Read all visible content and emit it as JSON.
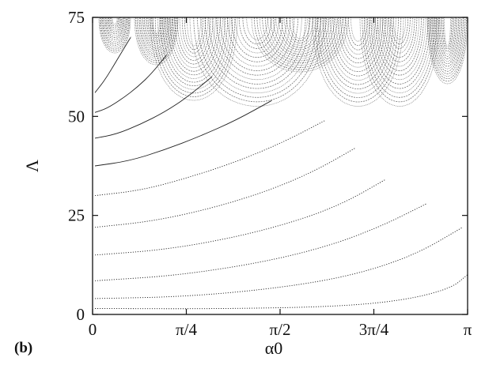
{
  "chart_data": {
    "type": "line",
    "title": "",
    "panel_label": "(b)",
    "xlabel": "α0",
    "ylabel": "Λ",
    "xlim": [
      0,
      3.14159
    ],
    "ylim": [
      0,
      75
    ],
    "grid": false,
    "legend": "none",
    "x_ticks": [
      {
        "value": 0,
        "label": "0"
      },
      {
        "value": 0.7854,
        "label": "π/4"
      },
      {
        "value": 1.5708,
        "label": "π/2"
      },
      {
        "value": 2.3562,
        "label": "3π/4"
      },
      {
        "value": 3.14159,
        "label": "π"
      }
    ],
    "y_ticks": [
      {
        "value": 0,
        "label": "0"
      },
      {
        "value": 25,
        "label": "25"
      },
      {
        "value": 50,
        "label": "50"
      },
      {
        "value": 75,
        "label": "75"
      }
    ],
    "series": [
      {
        "x": [
          0.02,
          1.0,
          2.0,
          2.6,
          3.0,
          3.14
        ],
        "y": [
          1.5,
          1.4,
          1.9,
          3.5,
          6.5,
          10.0
        ]
      },
      {
        "x": [
          0.02,
          0.8,
          1.6,
          2.2,
          2.7,
          3.1
        ],
        "y": [
          4.0,
          4.5,
          6.8,
          10.0,
          15.0,
          22.0
        ]
      },
      {
        "x": [
          0.02,
          0.7,
          1.4,
          1.95,
          2.4,
          2.8
        ],
        "y": [
          8.5,
          9.8,
          13.0,
          17.0,
          22.0,
          28.0
        ]
      },
      {
        "x": [
          0.02,
          0.6,
          1.2,
          1.7,
          2.1,
          2.45
        ],
        "y": [
          15.0,
          16.3,
          19.5,
          23.5,
          28.0,
          34.0
        ]
      },
      {
        "x": [
          0.02,
          0.5,
          1.0,
          1.45,
          1.85,
          2.2
        ],
        "y": [
          22.0,
          23.5,
          26.8,
          31.0,
          36.0,
          42.0
        ]
      },
      {
        "x": [
          0.02,
          0.4,
          0.8,
          1.2,
          1.6,
          1.95
        ],
        "y": [
          30.0,
          31.3,
          34.5,
          38.5,
          43.5,
          49.0
        ]
      },
      {
        "x": [
          0.02,
          0.3,
          0.6,
          0.9,
          1.2,
          1.5
        ],
        "y": [
          37.5,
          38.7,
          41.5,
          45.0,
          49.0,
          54.0
        ]
      },
      {
        "x": [
          0.02,
          0.2,
          0.4,
          0.6,
          0.8,
          1.0
        ],
        "y": [
          44.5,
          45.5,
          48.0,
          51.0,
          55.0,
          60.0
        ]
      },
      {
        "x": [
          0.02,
          0.12,
          0.25,
          0.38,
          0.5,
          0.62
        ],
        "y": [
          51.0,
          52.0,
          54.5,
          57.5,
          61.0,
          65.5
        ]
      },
      {
        "x": [
          0.02,
          0.06,
          0.12,
          0.18,
          0.25,
          0.32
        ],
        "y": [
          56.0,
          57.5,
          60.0,
          63.0,
          66.5,
          70.0
        ]
      }
    ]
  }
}
